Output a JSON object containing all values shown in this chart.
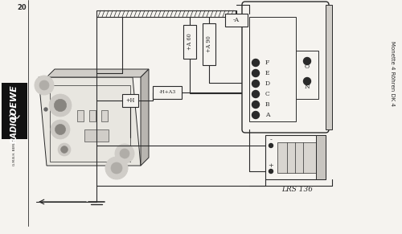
{
  "bg_color": "#f5f3ef",
  "line_color": "#2a2a2a",
  "title_right": "Monette 4 Röhren DK 4",
  "label_lrs": "LRS 136",
  "page_num": "20",
  "label_a60": "+A 60",
  "label_a90": "+A 90",
  "label_neg_a": "-A",
  "label_ha3": "-H+A3",
  "label_h": "+H",
  "pin_labels_left": [
    "A",
    "B",
    "C",
    "D",
    "E",
    "F"
  ],
  "pin_labels_right": [
    "O",
    "N"
  ]
}
